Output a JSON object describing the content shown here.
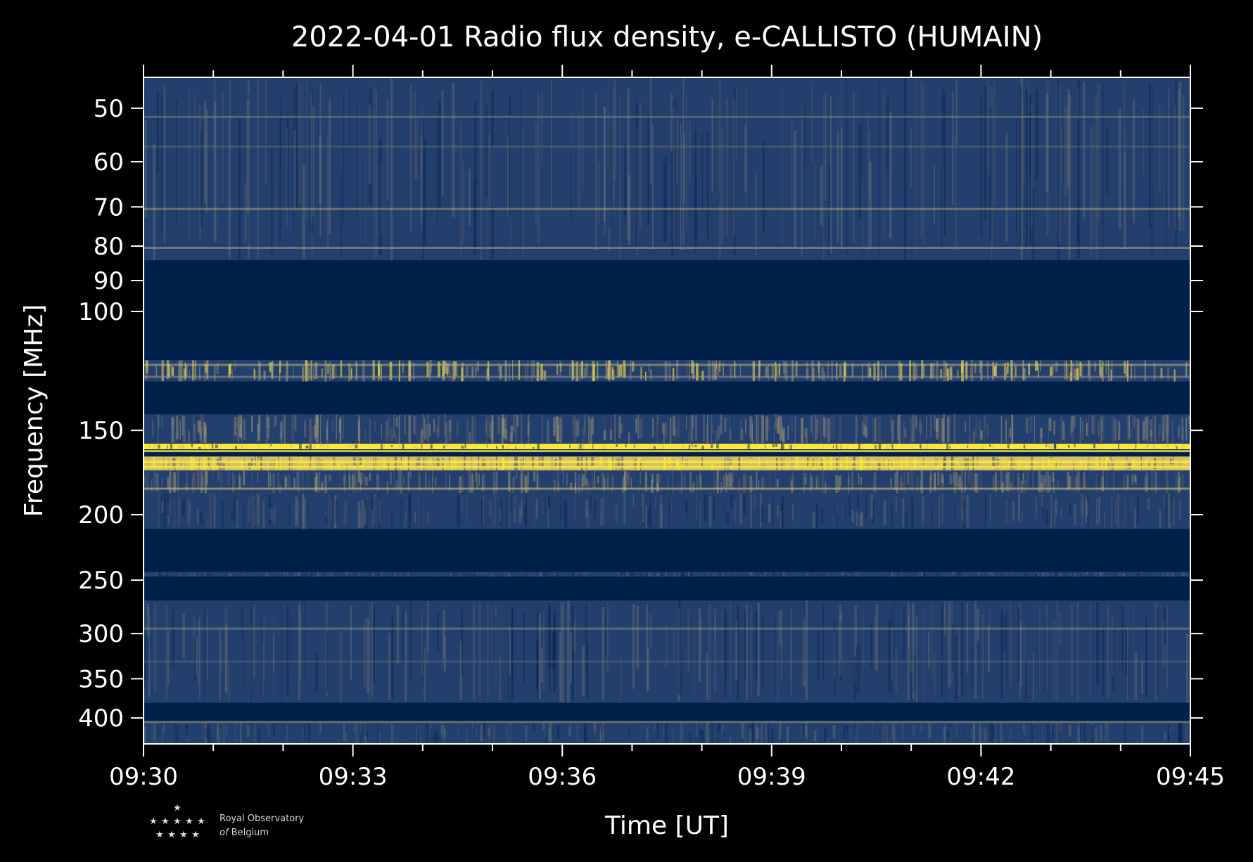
{
  "chart_data": {
    "type": "heatmap",
    "title": "2022-04-01 Radio flux density, e-CALLISTO (HUMAIN)",
    "xlabel": "Time [UT]",
    "ylabel": "Frequency [MHz]",
    "x_ticks": [
      "09:30",
      "09:33",
      "09:36",
      "09:39",
      "09:42",
      "09:45"
    ],
    "x_range": [
      "09:30",
      "09:45"
    ],
    "y_ticks": [
      50,
      60,
      70,
      80,
      90,
      100,
      150,
      200,
      250,
      300,
      350,
      400
    ],
    "y_range": [
      45,
      437
    ],
    "y_scale": "log",
    "colormap": [
      "#00204c",
      "#233f6e",
      "#575c6d",
      "#7c7b78",
      "#a69d75",
      "#d3c164",
      "#fee838"
    ],
    "bands": [
      {
        "f_low": 45,
        "f_high": 84,
        "level": "low-noise"
      },
      {
        "f_low": 84,
        "f_high": 118,
        "level": "empty"
      },
      {
        "f_low": 118,
        "f_high": 127,
        "level": "mixed-bursty"
      },
      {
        "f_low": 127,
        "f_high": 142,
        "level": "empty"
      },
      {
        "f_low": 142,
        "f_high": 157,
        "level": "mixed"
      },
      {
        "f_low": 157,
        "f_high": 160,
        "level": "bright"
      },
      {
        "f_low": 164,
        "f_high": 172,
        "level": "bright-bursty"
      },
      {
        "f_low": 172,
        "f_high": 186,
        "level": "mixed"
      },
      {
        "f_low": 186,
        "f_high": 210,
        "level": "low-noise"
      },
      {
        "f_low": 210,
        "f_high": 243,
        "level": "empty"
      },
      {
        "f_low": 243,
        "f_high": 247,
        "level": "low-noise"
      },
      {
        "f_low": 247,
        "f_high": 268,
        "level": "empty"
      },
      {
        "f_low": 268,
        "f_high": 380,
        "level": "low-noise"
      },
      {
        "f_low": 380,
        "f_high": 405,
        "level": "empty"
      },
      {
        "f_low": 405,
        "f_high": 437,
        "level": "low-noise"
      }
    ],
    "grid": false,
    "legend": "none"
  },
  "logo": {
    "line1": "Royal Observatory",
    "line2_prefix": "of",
    "line2_rest": " Belgium"
  }
}
